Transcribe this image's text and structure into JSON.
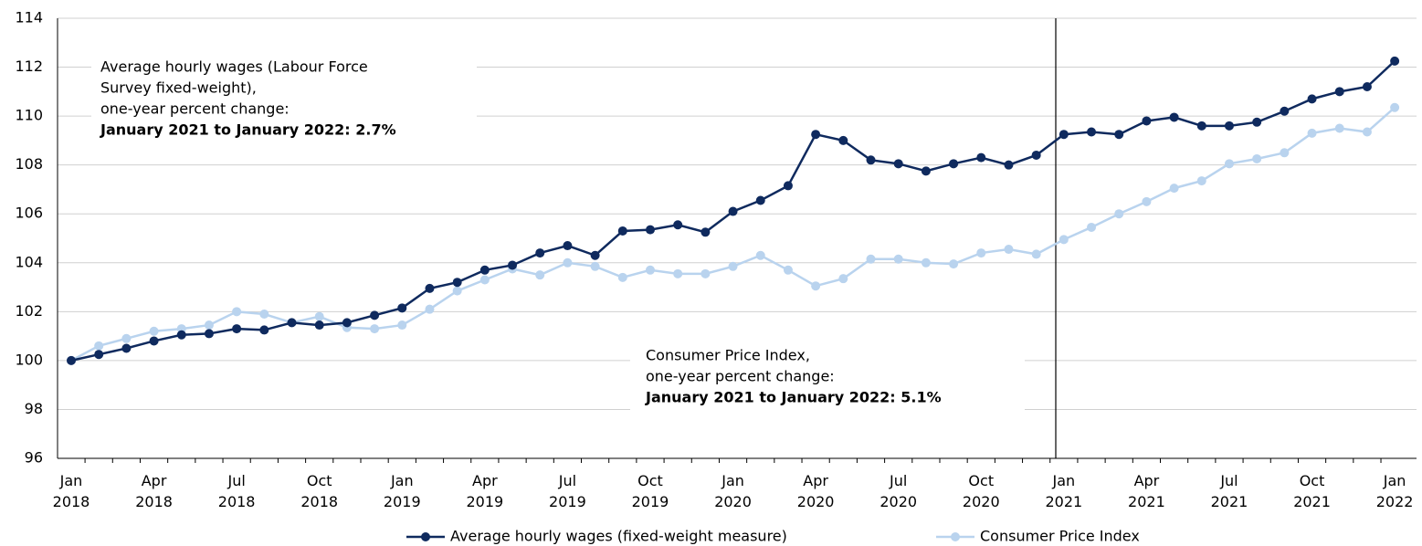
{
  "chart_data": {
    "type": "line",
    "categories": [
      "Jan 2018",
      null,
      null,
      "Apr 2018",
      null,
      null,
      "Jul 2018",
      null,
      null,
      "Oct 2018",
      null,
      null,
      "Jan 2019",
      null,
      null,
      "Apr 2019",
      null,
      null,
      "Jul 2019",
      null,
      null,
      "Oct 2019",
      null,
      null,
      "Jan 2020",
      null,
      null,
      "Apr 2020",
      null,
      null,
      "Jul 2020",
      null,
      null,
      "Oct 2020",
      null,
      null,
      "Jan 2021",
      null,
      null,
      "Apr 2021",
      null,
      null,
      "Jul 2021",
      null,
      null,
      "Oct 2021",
      null,
      null,
      "Jan 2022"
    ],
    "series": [
      {
        "name": "Average hourly wages (fixed-weight measure)",
        "color": "#0f2a5e",
        "values": [
          100,
          100.25,
          100.5,
          100.8,
          101.05,
          101.1,
          101.3,
          101.25,
          101.55,
          101.45,
          101.55,
          101.85,
          102.15,
          102.95,
          103.2,
          103.7,
          103.9,
          104.4,
          104.7,
          104.3,
          105.3,
          105.35,
          105.55,
          105.25,
          106.1,
          106.55,
          107.15,
          109.25,
          109.0,
          108.2,
          108.05,
          107.75,
          108.05,
          108.3,
          108.0,
          108.4,
          109.25,
          109.35,
          109.25,
          109.8,
          109.95,
          109.6,
          109.6,
          109.75,
          110.2,
          110.7,
          111.0,
          111.2,
          112.25
        ]
      },
      {
        "name": "Consumer Price Index",
        "color": "#b9d3ee",
        "values": [
          100,
          100.6,
          100.9,
          101.2,
          101.3,
          101.45,
          102.0,
          101.9,
          101.55,
          101.8,
          101.35,
          101.3,
          101.45,
          102.1,
          102.85,
          103.3,
          103.75,
          103.5,
          104.0,
          103.85,
          103.4,
          103.7,
          103.55,
          103.55,
          103.85,
          104.3,
          103.7,
          103.05,
          103.35,
          104.15,
          104.15,
          104.0,
          103.95,
          104.4,
          104.55,
          104.35,
          104.95,
          105.45,
          106.0,
          106.5,
          107.05,
          107.35,
          108.05,
          108.25,
          108.5,
          109.3,
          109.5,
          109.35,
          110.35
        ]
      }
    ],
    "ylim": [
      96,
      114
    ],
    "yticks": [
      96,
      98,
      100,
      102,
      104,
      106,
      108,
      110,
      112,
      114
    ],
    "grid": true,
    "annotations": [
      {
        "lines": [
          "Average hourly wages (Labour Force",
          "Survey fixed-weight),",
          "one-year percent change:"
        ],
        "bold": "January 2021 to January 2022: 2.7%"
      },
      {
        "lines": [
          "Consumer Price Index,",
          "one-year percent change:"
        ],
        "bold": "January 2021 to January 2022: 5.1%"
      }
    ],
    "legend": "bottom"
  }
}
